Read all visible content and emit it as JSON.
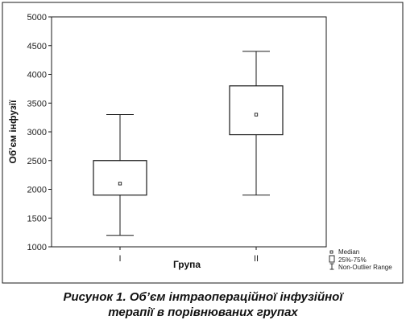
{
  "chart_data": {
    "type": "box",
    "xlabel": "Група",
    "ylabel": "Об’єм інфузії",
    "ylim": [
      1000,
      5000
    ],
    "y_ticks": [
      1000,
      1500,
      2000,
      2500,
      3000,
      3500,
      4000,
      4500,
      5000
    ],
    "categories": [
      "I",
      "II"
    ],
    "groups": [
      {
        "label": "I",
        "median": 2100,
        "q1": 1900,
        "q3": 2500,
        "min": 1200,
        "max": 3300
      },
      {
        "label": "II",
        "median": 3300,
        "q1": 2950,
        "q3": 3800,
        "min": 1900,
        "max": 4400
      }
    ],
    "legend": [
      "Median",
      "25%-75%",
      "Non-Outlier Range"
    ],
    "legend_position": "bottom-right",
    "grid": false
  },
  "caption": {
    "line1": "Рисунок 1. Об’єм інтраопераційної інфузійної",
    "line2": "терапії в порівнюваних групах"
  },
  "colors": {
    "stroke": "#1a1a1a",
    "background": "#ffffff"
  }
}
